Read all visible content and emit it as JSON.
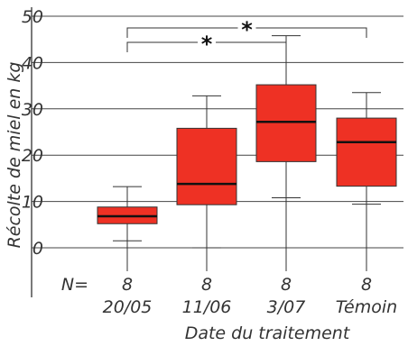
{
  "chart_data": {
    "type": "box",
    "ylabel": "Récolte de miel en kg",
    "xlabel": "Date du traitement",
    "ylim": [
      0,
      50
    ],
    "yticks": [
      "0",
      "10",
      "20",
      "30",
      "40",
      "50"
    ],
    "grid": true,
    "n_label": "N=",
    "box_color": "#ee3124",
    "categories": [
      "20/05",
      "11/06",
      "3/07",
      "Témoin"
    ],
    "n_values": [
      "8",
      "8",
      "8",
      "8"
    ],
    "boxes": [
      {
        "category": "20/05",
        "min": 1.5,
        "q1": 5.2,
        "median": 6.8,
        "q3": 8.8,
        "max": 13.2
      },
      {
        "category": "11/06",
        "min": 0,
        "q1": 9.3,
        "median": 13.8,
        "q3": 25.8,
        "max": 32.8
      },
      {
        "category": "3/07",
        "min": 10.8,
        "q1": 18.6,
        "median": 27.2,
        "q3": 35.2,
        "max": 45.8
      },
      {
        "category": "Témoin",
        "min": 9.4,
        "q1": 13.3,
        "median": 22.8,
        "q3": 28.0,
        "max": 33.5
      }
    ],
    "significance": [
      {
        "from": "20/05",
        "to": "3/07",
        "label": "*"
      },
      {
        "from": "20/05",
        "to": "Témoin",
        "label": "*"
      }
    ]
  }
}
